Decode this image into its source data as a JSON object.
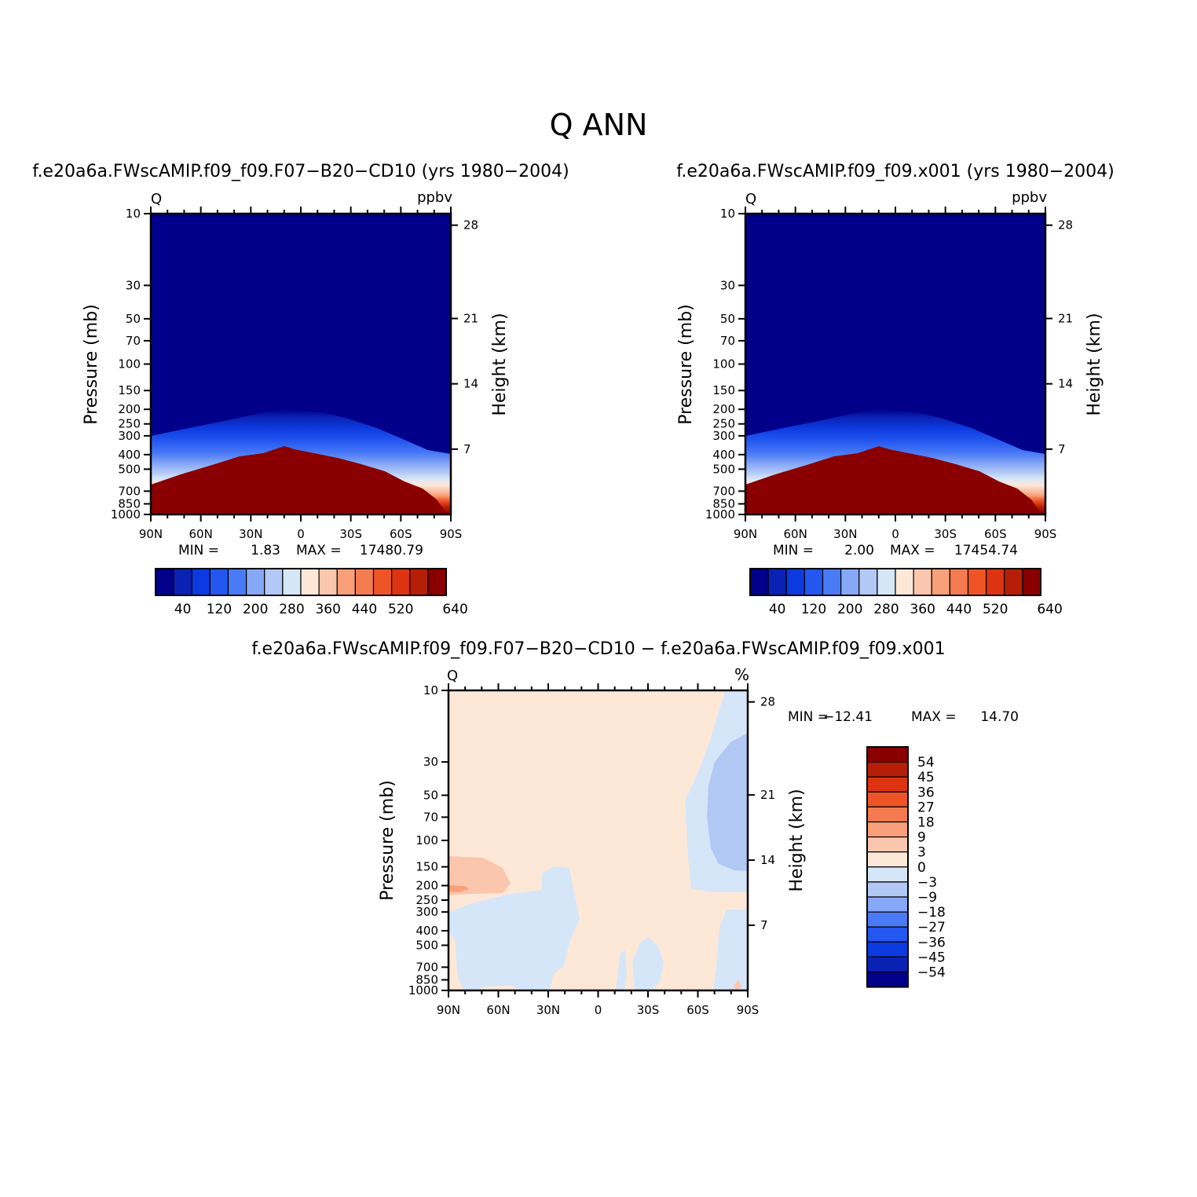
{
  "figure": {
    "title": "Q  ANN",
    "diff_title": "f.e20a6a.FWscAMIP.f09_f09.F07−B20−CD10  −  f.e20a6a.FWscAMIP.f09_f09.x001"
  },
  "colors": {
    "ramp": [
      "#00008b",
      "#0a22b4",
      "#0c3ae0",
      "#2456f0",
      "#4a7af5",
      "#86a8f6",
      "#b2c8f5",
      "#d6e6f9",
      "#fde8d8",
      "#fbc6ae",
      "#f9a07a",
      "#f57b50",
      "#ef5426",
      "#de3310",
      "#b51f08",
      "#8a0000"
    ],
    "diff_ramp": [
      "#00008b",
      "#0a22b4",
      "#0c3ae0",
      "#2456f0",
      "#4a7af5",
      "#86a8f6",
      "#b2c8f5",
      "#d6e6f9",
      "#fde8d8",
      "#fbc6ae",
      "#f9a07a",
      "#f57b50",
      "#ef5426",
      "#de3310",
      "#b51f08",
      "#8a0000"
    ]
  },
  "chart_data": [
    {
      "type": "heatmap",
      "title": "f.e20a6a.FWscAMIP.f09_f09.F07−B20−CD10 (yrs 1980−2004)",
      "left_string": "Q",
      "right_string": "ppbv",
      "ylabel": "Pressure (mb)",
      "ylabel_right": "Height (km)",
      "x_ticks": [
        "90N",
        "60N",
        "30N",
        "0",
        "30S",
        "60S",
        "90S"
      ],
      "y_ticks": [
        "10",
        "30",
        "50",
        "70",
        "100",
        "150",
        "200",
        "250",
        "300",
        "400",
        "500",
        "700",
        "850",
        "1000"
      ],
      "y_right_ticks": [
        "28",
        "21",
        "14",
        "7"
      ],
      "ylim": [
        1000,
        10
      ],
      "y_scale": "log",
      "min_label": "MIN =",
      "min_value": "1.83",
      "max_label": "MAX =",
      "max_value": "17480.79",
      "colorbar_levels": [
        20,
        40,
        80,
        120,
        160,
        200,
        240,
        280,
        320,
        360,
        400,
        440,
        480,
        520,
        560,
        600,
        640
      ],
      "colorbar_labels": [
        "40",
        "120",
        "200",
        "280",
        "360",
        "440",
        "520",
        "640"
      ],
      "tropopause_pressure_mb": [
        {
          "lat": "90N",
          "p": 300
        },
        {
          "lat": "60N",
          "p": 255
        },
        {
          "lat": "30N",
          "p": 215
        },
        {
          "lat": "10N",
          "p": 200
        },
        {
          "lat": "0",
          "p": 202
        },
        {
          "lat": "30S",
          "p": 230
        },
        {
          "lat": "60S",
          "p": 285
        },
        {
          "lat": "90S",
          "p": 340
        }
      ]
    },
    {
      "type": "heatmap",
      "title": "f.e20a6a.FWscAMIP.f09_f09.x001 (yrs 1980−2004)",
      "left_string": "Q",
      "right_string": "ppbv",
      "ylabel": "Pressure (mb)",
      "ylabel_right": "Height (km)",
      "x_ticks": [
        "90N",
        "60N",
        "30N",
        "0",
        "30S",
        "60S",
        "90S"
      ],
      "y_ticks": [
        "10",
        "30",
        "50",
        "70",
        "100",
        "150",
        "200",
        "250",
        "300",
        "400",
        "500",
        "700",
        "850",
        "1000"
      ],
      "y_right_ticks": [
        "28",
        "21",
        "14",
        "7"
      ],
      "ylim": [
        1000,
        10
      ],
      "y_scale": "log",
      "min_label": "MIN =",
      "min_value": "2.00",
      "max_label": "MAX =",
      "max_value": "17454.74",
      "colorbar_levels": [
        20,
        40,
        80,
        120,
        160,
        200,
        240,
        280,
        320,
        360,
        400,
        440,
        480,
        520,
        560,
        600,
        640
      ],
      "colorbar_labels": [
        "40",
        "120",
        "200",
        "280",
        "360",
        "440",
        "520",
        "640"
      ],
      "tropopause_pressure_mb": [
        {
          "lat": "90N",
          "p": 300
        },
        {
          "lat": "60N",
          "p": 255
        },
        {
          "lat": "30N",
          "p": 215
        },
        {
          "lat": "10N",
          "p": 200
        },
        {
          "lat": "0",
          "p": 202
        },
        {
          "lat": "30S",
          "p": 230
        },
        {
          "lat": "60S",
          "p": 285
        },
        {
          "lat": "90S",
          "p": 340
        }
      ]
    },
    {
      "type": "heatmap",
      "title": "f.e20a6a.FWscAMIP.f09_f09.F07−B20−CD10  −  f.e20a6a.FWscAMIP.f09_f09.x001",
      "left_string": "Q",
      "right_string": "%",
      "ylabel": "Pressure (mb)",
      "ylabel_right": "Height (km)",
      "x_ticks": [
        "90N",
        "60N",
        "30N",
        "0",
        "30S",
        "60S",
        "90S"
      ],
      "y_ticks": [
        "10",
        "30",
        "50",
        "70",
        "100",
        "150",
        "200",
        "250",
        "300",
        "400",
        "500",
        "700",
        "850",
        "1000"
      ],
      "y_right_ticks": [
        "28",
        "21",
        "14",
        "7"
      ],
      "ylim": [
        1000,
        10
      ],
      "y_scale": "log",
      "min_label": "MIN =",
      "min_value": "−12.41",
      "max_label": "MAX =",
      "max_value": "14.70",
      "colorbar_labels": [
        "54",
        "45",
        "36",
        "27",
        "18",
        "9",
        "3",
        "0",
        "−3",
        "−9",
        "−18",
        "−27",
        "−36",
        "−45",
        "−54"
      ]
    }
  ]
}
